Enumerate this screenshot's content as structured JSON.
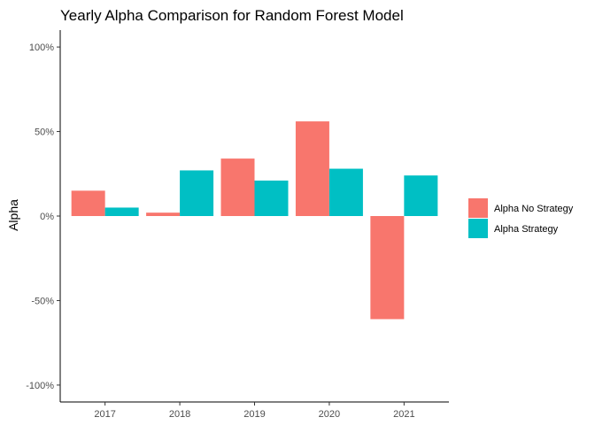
{
  "chart_data": {
    "type": "bar",
    "title": "Yearly Alpha Comparison for Random Forest Model",
    "xlabel": "",
    "ylabel": "Alpha",
    "categories": [
      "2017",
      "2018",
      "2019",
      "2020",
      "2021"
    ],
    "series": [
      {
        "name": "Alpha No Strategy",
        "color": "#F8766D",
        "values": [
          15,
          2,
          34,
          56,
          -61
        ]
      },
      {
        "name": "Alpha Strategy",
        "color": "#00BFC4",
        "values": [
          5,
          27,
          21,
          28,
          24
        ]
      }
    ],
    "ylim": [
      -110,
      110
    ],
    "yticks": [
      -100,
      -50,
      0,
      50,
      100
    ],
    "ytick_labels": [
      "-100%",
      "-50%",
      "0%",
      "50%",
      "100%"
    ],
    "grid": false,
    "legend_position": "right"
  }
}
